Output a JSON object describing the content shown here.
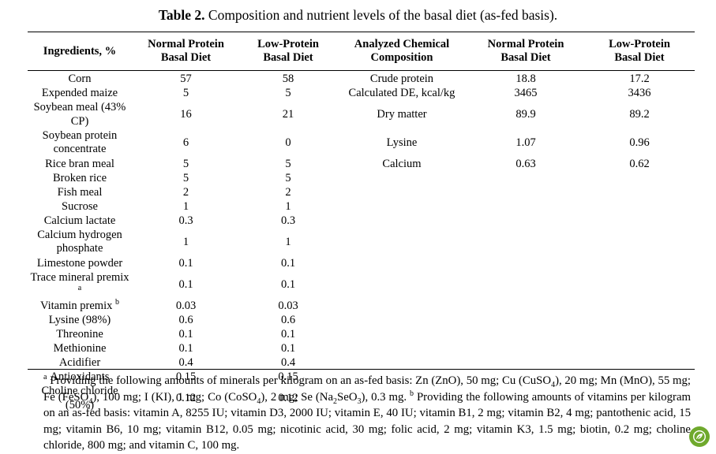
{
  "caption": {
    "label": "Table 2.",
    "text": "Composition and nutrient levels of the basal diet (as-fed basis)."
  },
  "headers": {
    "ingredients": "Ingredients, %",
    "normal_protein_1": [
      "Normal Protein",
      "Basal Diet"
    ],
    "low_protein_1": [
      "Low-Protein",
      "Basal Diet"
    ],
    "analyzed": [
      "Analyzed Chemical",
      "Composition"
    ],
    "normal_protein_2": [
      "Normal Protein",
      "Basal Diet"
    ],
    "low_protein_2": [
      "Low-Protein",
      "Basal Diet"
    ]
  },
  "ingredients": [
    {
      "name": "Corn",
      "normal": "57",
      "low": "58"
    },
    {
      "name": "Expended maize",
      "normal": "5",
      "low": "5"
    },
    {
      "name": "Soybean meal (43% CP)",
      "normal": "16",
      "low": "21"
    },
    {
      "name": "Soybean protein concentrate",
      "name_lines": [
        "Soybean protein",
        "concentrate"
      ],
      "normal": "6",
      "low": "0"
    },
    {
      "name": "Rice bran meal",
      "normal": "5",
      "low": "5"
    },
    {
      "name": "Broken rice",
      "normal": "5",
      "low": "5"
    },
    {
      "name": "Fish meal",
      "normal": "2",
      "low": "2"
    },
    {
      "name": "Sucrose",
      "normal": "1",
      "low": "1"
    },
    {
      "name": "Calcium lactate",
      "normal": "0.3",
      "low": "0.3"
    },
    {
      "name": "Calcium hydrogen phosphate",
      "name_lines": [
        "Calcium hydrogen",
        "phosphate"
      ],
      "normal": "1",
      "low": "1"
    },
    {
      "name": "Limestone powder",
      "normal": "0.1",
      "low": "0.1"
    },
    {
      "name": "Trace mineral premix",
      "mark": "a",
      "normal": "0.1",
      "low": "0.1"
    },
    {
      "name": "Vitamin premix",
      "mark": "b",
      "normal": "0.03",
      "low": "0.03"
    },
    {
      "name": "Lysine (98%)",
      "normal": "0.6",
      "low": "0.6"
    },
    {
      "name": "Threonine",
      "normal": "0.1",
      "low": "0.1"
    },
    {
      "name": "Methionine",
      "normal": "0.1",
      "low": "0.1"
    },
    {
      "name": "Acidifier",
      "normal": "0.4",
      "low": "0.4"
    },
    {
      "name": "Antioxidants",
      "normal": "0.15",
      "low": "0.15"
    },
    {
      "name": "Choline chloride (50%)",
      "normal": "0.12",
      "low": "0.12"
    }
  ],
  "composition": [
    {
      "name": "Crude protein",
      "normal": "18.8",
      "low": "17.2"
    },
    {
      "name": "Calculated DE, kcal/kg",
      "normal": "3465",
      "low": "3436"
    },
    {
      "name": "Dry matter",
      "normal": "89.9",
      "low": "89.2"
    },
    {
      "name": "Lysine",
      "normal": "1.07",
      "low": "0.96"
    },
    {
      "name": "Calcium",
      "normal": "0.63",
      "low": "0.62"
    }
  ],
  "footnotes": {
    "a_mark": "a",
    "a_text": "Providing the following amounts of minerals per kilogram on an as-fed basis: Zn (ZnO), 50 mg; Cu (CuSO4), 20 mg; Mn (MnO), 55 mg; Fe (FeSO4), 100 mg; I (KI), 1 mg; Co (CoSO4), 2 mg; Se (Na2SeO3), 0.3 mg.",
    "b_mark": "b",
    "b_text": "Providing the following amounts of vitamins per kilogram on an as-fed basis: vitamin A, 8255 IU; vitamin D3, 2000 IU; vitamin E, 40 IU; vitamin B1, 2 mg; vitamin B2, 4 mg; pantothenic acid, 15 mg; vitamin B6, 10 mg; vitamin B12, 0.05 mg; nicotinic acid, 30 mg; folic acid, 2 mg; vitamin K3, 1.5 mg; biotin, 0.2 mg; choline chloride, 800 mg; and vitamin C, 100 mg."
  },
  "colors": {
    "badge": "#6fa92d"
  },
  "icons": {
    "corner_badge": "leaf-badge-icon"
  }
}
